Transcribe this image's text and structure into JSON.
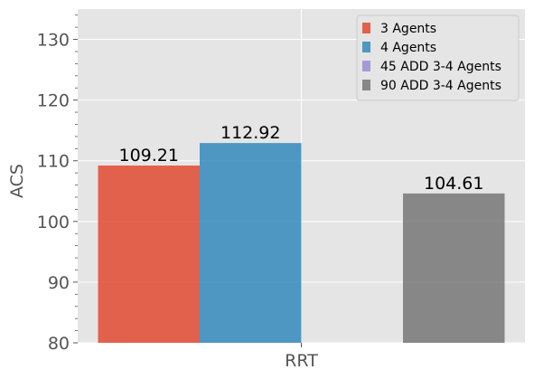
{
  "chart_data": {
    "type": "bar",
    "categories": [
      "RRT"
    ],
    "series": [
      {
        "name": "3 Agents",
        "values": [
          109.21
        ],
        "label": "109.21",
        "color": "#E24A33"
      },
      {
        "name": "4 Agents",
        "values": [
          112.92
        ],
        "label": "112.92",
        "color": "#348ABD"
      },
      {
        "name": "45 ADD 3-4 Agents",
        "values": [
          null
        ],
        "label": "",
        "color": "#988ED5"
      },
      {
        "name": "90 ADD 3-4 Agents",
        "values": [
          104.61
        ],
        "label": "104.61",
        "color": "#777777"
      }
    ],
    "ylabel": "ACS",
    "ylim": [
      80,
      135
    ],
    "yticks": [
      "80",
      "90",
      "100",
      "110",
      "120",
      "130"
    ],
    "grid": true,
    "legend_position": "top-right",
    "style": "ggplot",
    "plot_background": "#E5E5E5"
  }
}
